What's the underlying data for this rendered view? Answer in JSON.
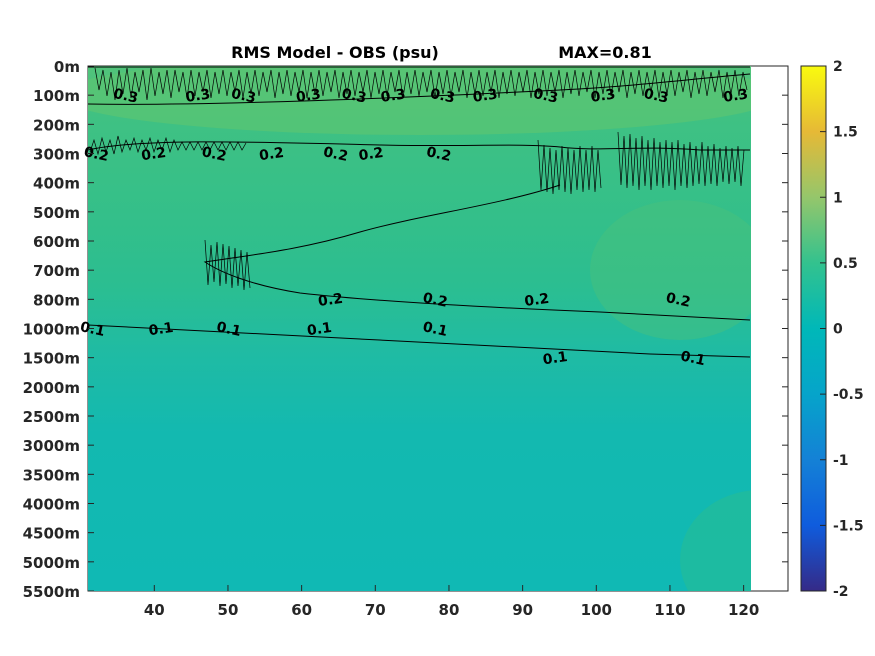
{
  "chart_data": {
    "type": "heatmap",
    "title": "RMS Model - OBS (psu)",
    "max_label": "MAX=0.81",
    "xlim": [
      31,
      121
    ],
    "x_ticks": [
      "40",
      "50",
      "60",
      "70",
      "80",
      "90",
      "100",
      "110",
      "120"
    ],
    "x_tick_values": [
      40,
      50,
      60,
      70,
      80,
      90,
      100,
      110,
      120
    ],
    "y_ticks": [
      "0m",
      "100m",
      "200m",
      "300m",
      "400m",
      "500m",
      "600m",
      "700m",
      "800m",
      "1000m",
      "1500m",
      "2000m",
      "2500m",
      "3000m",
      "3500m",
      "4000m",
      "4500m",
      "5000m",
      "5500m"
    ],
    "colorbar": {
      "range": [
        -2,
        2
      ],
      "ticks": [
        "2",
        "1.5",
        "1",
        "0.5",
        "0",
        "-0.5",
        "-1",
        "-1.5",
        "-2"
      ],
      "tick_values": [
        2,
        1.5,
        1,
        0.5,
        0,
        -0.5,
        -1,
        -1.5,
        -2
      ],
      "colormap": "parula"
    },
    "contours": [
      {
        "level": "0.1",
        "labels": [
          {
            "x": 31.5,
            "depth": "1000m"
          },
          {
            "x": 41,
            "depth": "1000m"
          },
          {
            "x": 50,
            "depth": "1000m"
          },
          {
            "x": 62.5,
            "depth": "1000m"
          },
          {
            "x": 78,
            "depth": "1000m"
          },
          {
            "x": 94.5,
            "depth": "1500m"
          },
          {
            "x": 113,
            "depth": "1500m"
          }
        ]
      },
      {
        "level": "0.2",
        "labels": [
          {
            "x": 32,
            "depth": "300m"
          },
          {
            "x": 40,
            "depth": "300m"
          },
          {
            "x": 48,
            "depth": "300m"
          },
          {
            "x": 56,
            "depth": "300m"
          },
          {
            "x": 64.5,
            "depth": "300m"
          },
          {
            "x": 69.5,
            "depth": "300m"
          },
          {
            "x": 78.5,
            "depth": "300m"
          },
          {
            "x": 64,
            "depth": "800m"
          },
          {
            "x": 78,
            "depth": "800m"
          },
          {
            "x": 92,
            "depth": "800m"
          },
          {
            "x": 111,
            "depth": "800m"
          }
        ]
      },
      {
        "level": "0.3",
        "labels": [
          {
            "x": 36,
            "depth": "100m"
          },
          {
            "x": 46,
            "depth": "100m"
          },
          {
            "x": 52,
            "depth": "100m"
          },
          {
            "x": 61,
            "depth": "100m"
          },
          {
            "x": 67,
            "depth": "100m"
          },
          {
            "x": 72.5,
            "depth": "100m"
          },
          {
            "x": 79,
            "depth": "100m"
          },
          {
            "x": 85,
            "depth": "100m"
          },
          {
            "x": 93,
            "depth": "100m"
          },
          {
            "x": 101,
            "depth": "100m"
          },
          {
            "x": 108,
            "depth": "100m"
          },
          {
            "x": 119,
            "depth": "100m"
          }
        ]
      }
    ]
  }
}
